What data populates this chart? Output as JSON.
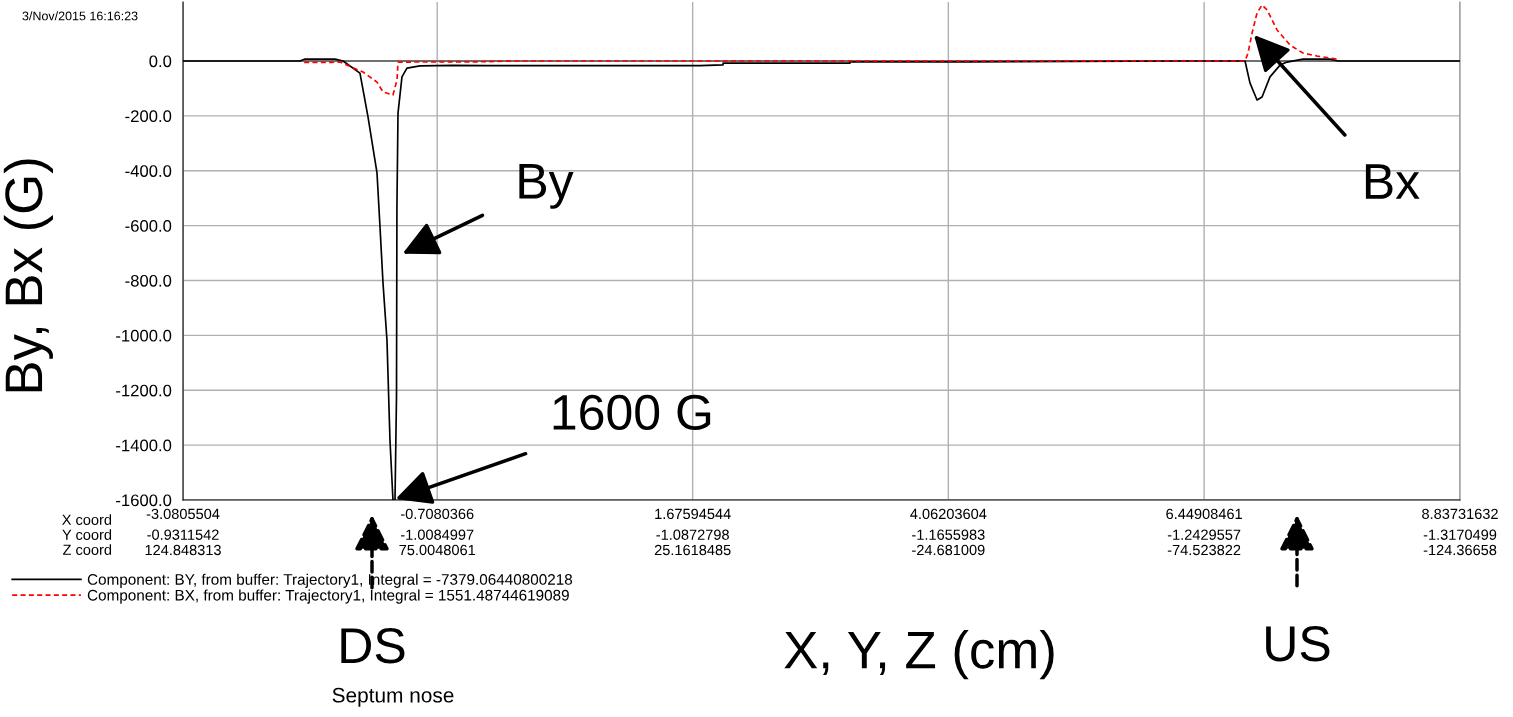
{
  "chart_data": {
    "type": "line",
    "xlabel": "X, Y, Z (cm)",
    "ylabel": "By, Bx (G)",
    "xlim": [
      -3.0805504,
      8.83731632
    ],
    "xticks": [
      -3.0805504,
      -0.7080366,
      1.67594544,
      4.06203604,
      6.44908461,
      8.83731632
    ],
    "ylim": [
      -1600,
      215
    ],
    "yticks": [
      {
        "value": -1600,
        "label": "-1600.0"
      },
      {
        "value": -1400,
        "label": "-1400.0"
      },
      {
        "value": -1200,
        "label": "-1200.0"
      },
      {
        "value": -1000,
        "label": "-1000.0"
      },
      {
        "value": -800,
        "label": "-800.0"
      },
      {
        "value": -600,
        "label": "-600.0"
      },
      {
        "value": -400,
        "label": "-400.0"
      },
      {
        "value": -200,
        "label": "-200.0"
      },
      {
        "value": 0,
        "label": "0.0"
      }
    ],
    "grid": true,
    "legend": "bottom left",
    "series": [
      {
        "name": "Component: BY, from buffer: Trajectory1, Integral = -7379.06440800218",
        "color": "#000000",
        "line_style": "solid",
        "x": [
          -3.08,
          -1.989,
          -1.942,
          -1.662,
          -1.587,
          -1.429,
          -1.354,
          -1.27,
          -1.242,
          -1.214,
          -1.177,
          -1.149,
          -1.121,
          -1.102,
          -1.088,
          -1.084,
          -1.074,
          -1.037,
          -0.99,
          -0.869,
          -0.561,
          -0.243,
          1.745,
          1.959,
          1.96,
          3.144,
          3.145,
          4.265,
          6.299,
          6.831,
          6.877,
          6.943,
          6.99,
          7.064,
          7.158,
          7.223,
          7.372,
          7.624,
          7.7,
          8.837
        ],
        "values": [
          0,
          0,
          7,
          7,
          0,
          -44,
          -204,
          -408,
          -605,
          -809,
          -1017,
          -1381,
          -1600,
          -1600,
          -1224,
          -532,
          -190,
          -58,
          -26,
          -18,
          -16,
          -17,
          -17,
          -14,
          -8,
          -8,
          -3,
          -3,
          0,
          0,
          -80,
          -142,
          -131,
          -58,
          -15,
          -4,
          7,
          7,
          0,
          0
        ]
      },
      {
        "name": "Component: BX, from buffer: Trajectory1, Integral = 1551.48744619089",
        "color": "#ff0000",
        "line_style": "dashed",
        "x": [
          -1.95,
          -1.7,
          -1.615,
          -1.401,
          -1.27,
          -1.214,
          -1.121,
          -1.083,
          -1.074,
          -0.309,
          0.0,
          6.831,
          6.859,
          6.897,
          6.943,
          6.99,
          7.037,
          7.13,
          7.251,
          7.372,
          7.503,
          7.69
        ],
        "values": [
          -5,
          -5,
          -4,
          -40,
          -77,
          -113,
          -124,
          -69,
          -4,
          -3,
          0,
          0,
          29,
          102,
          175,
          204,
          186,
          113,
          58,
          29,
          18,
          7
        ]
      }
    ],
    "annotations": [
      "3/Nov/2015 16:16:23",
      "X coord",
      "Y coord",
      "Z coord",
      {
        "text": "By",
        "x": -1.055,
        "y": -707
      },
      {
        "text": "1600 G",
        "x": -1.121,
        "y": -1600
      },
      {
        "text": "Bx",
        "x": 6.897,
        "y": 102
      },
      "DS",
      "US",
      "Septum nose",
      "-0.9311542",
      "-1.0084997",
      "-1.0872798",
      "-1.1655983",
      "-1.2429557",
      "-1.3170499",
      "124.848313",
      "75.0048061",
      "25.1618485",
      "-24.681009",
      "-74.523822",
      "-124.36658"
    ]
  }
}
